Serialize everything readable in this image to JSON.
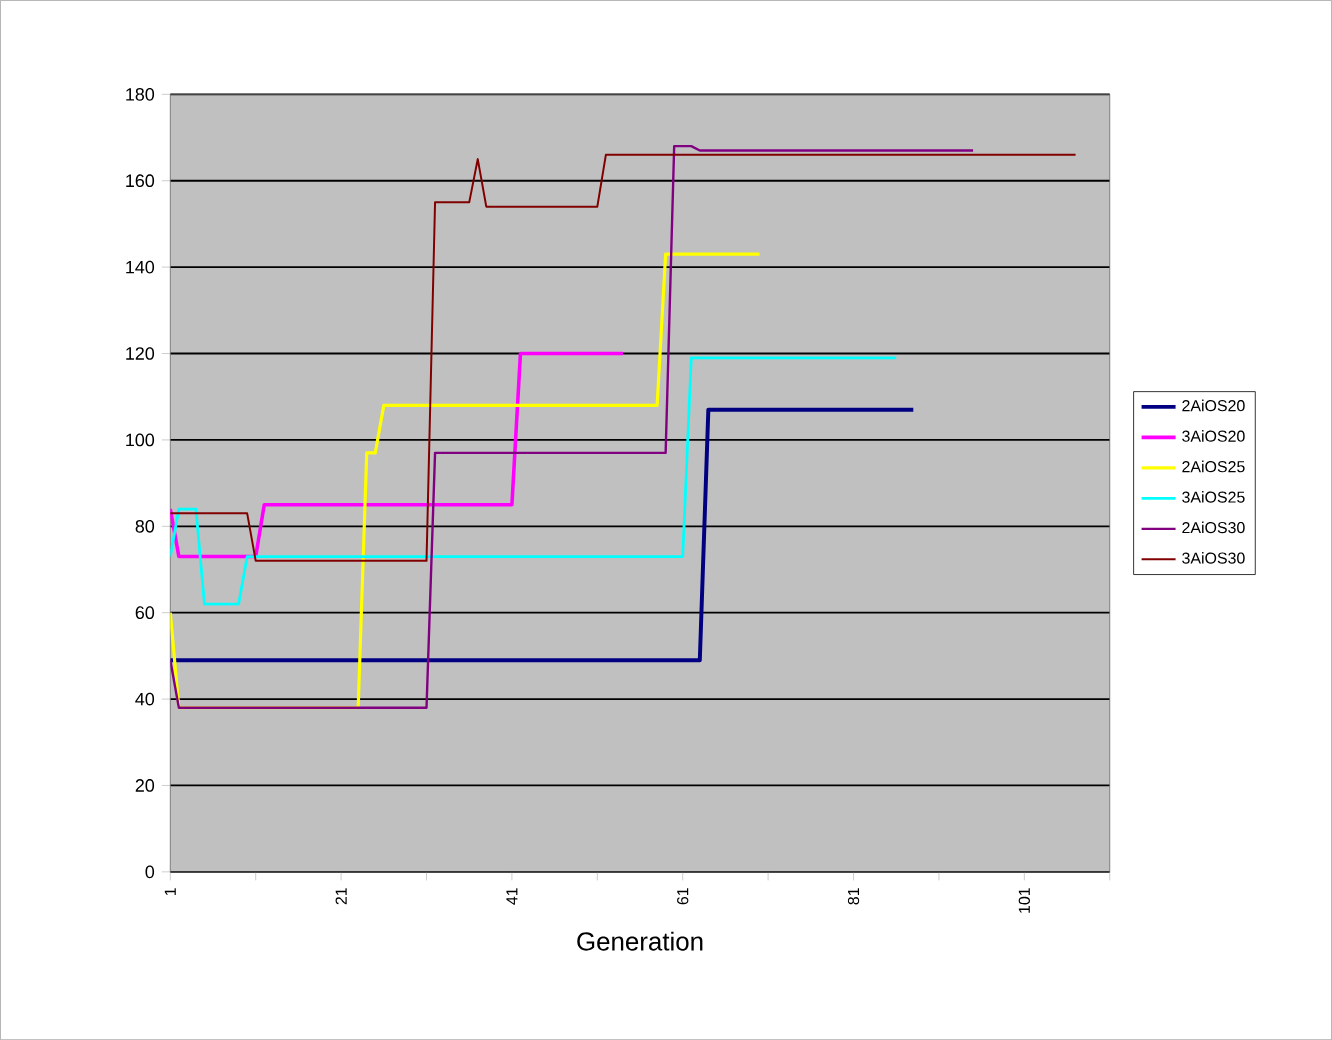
{
  "chart_data": {
    "type": "line",
    "xlabel": "Generation",
    "xlim": [
      1,
      111
    ],
    "xticks": [
      1,
      {
        "value": 11,
        "label": null
      },
      21,
      {
        "value": 31,
        "label": null
      },
      41,
      {
        "value": 51,
        "label": null
      },
      61,
      {
        "value": 71,
        "label": null
      },
      81,
      {
        "value": 91,
        "label": null
      },
      101,
      {
        "value": 111,
        "label": null
      }
    ],
    "ylim": [
      0,
      180
    ],
    "yticks": [
      0,
      20,
      40,
      60,
      80,
      100,
      120,
      140,
      160,
      180
    ],
    "grid": "y",
    "legend": "right",
    "series": [
      {
        "name": "2AiOS20",
        "color": "#000080",
        "x": [
          1,
          63,
          64,
          88
        ],
        "values": [
          49,
          49,
          107,
          107
        ]
      },
      {
        "name": "3AiOS20",
        "color": "#ff00ff",
        "x": [
          1,
          2,
          11,
          12,
          41,
          42,
          54
        ],
        "values": [
          84,
          73,
          73,
          85,
          85,
          120,
          120
        ]
      },
      {
        "name": "2AiOS25",
        "color": "#ffff00",
        "x": [
          1,
          2,
          23,
          24,
          25,
          26,
          58,
          59,
          70
        ],
        "values": [
          60,
          38,
          38,
          97,
          97,
          108,
          108,
          143,
          143
        ]
      },
      {
        "name": "3AiOS25",
        "color": "#00ffff",
        "x": [
          1,
          2,
          4,
          5,
          9,
          10,
          61,
          62,
          86
        ],
        "values": [
          73,
          84,
          84,
          62,
          62,
          73,
          73,
          119,
          119
        ]
      },
      {
        "name": "2AiOS30",
        "color": "#800080",
        "x": [
          1,
          2,
          31,
          32,
          59,
          60,
          62,
          63,
          95
        ],
        "values": [
          49,
          38,
          38,
          97,
          97,
          168,
          168,
          167,
          167
        ]
      },
      {
        "name": "3AiOS30",
        "color": "#800000",
        "x": [
          1,
          10,
          11,
          31,
          32,
          36,
          37,
          38,
          51,
          52,
          107
        ],
        "values": [
          83,
          83,
          72,
          72,
          155,
          155,
          165,
          154,
          154,
          166,
          166
        ]
      }
    ]
  }
}
